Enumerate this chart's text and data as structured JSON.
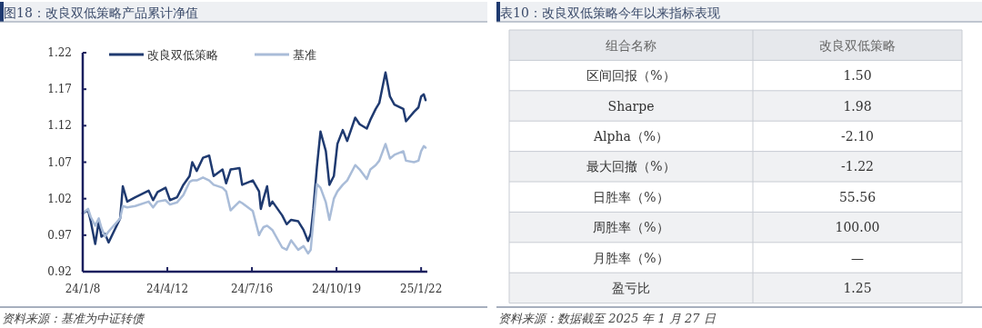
{
  "chart_data": [
    {
      "type": "line",
      "title": "图18：改良双低策略产品累计净值",
      "annotations": [
        "资料来源：基准为中证转债"
      ],
      "x": [
        "2024-01-08",
        "2024-01-14",
        "2024-01-17",
        "2024-01-22",
        "2024-01-26",
        "2024-01-29",
        "2024-02-02",
        "2024-02-06",
        "2024-02-19",
        "2024-02-22",
        "2024-02-27",
        "2024-03-07",
        "2024-03-22",
        "2024-03-27",
        "2024-04-01",
        "2024-04-10",
        "2024-04-15",
        "2024-04-23",
        "2024-04-30",
        "2024-05-07",
        "2024-05-10",
        "2024-05-15",
        "2024-05-22",
        "2024-05-29",
        "2024-06-03",
        "2024-06-13",
        "2024-06-17",
        "2024-06-22",
        "2024-07-02",
        "2024-07-05",
        "2024-07-17",
        "2024-07-24",
        "2024-07-26",
        "2024-07-29",
        "2024-08-02",
        "2024-08-05",
        "2024-08-08",
        "2024-08-19",
        "2024-08-24",
        "2024-08-29",
        "2024-09-06",
        "2024-09-12",
        "2024-09-17",
        "2024-09-20",
        "2024-09-23",
        "2024-09-27",
        "2024-10-01",
        "2024-10-07",
        "2024-10-11",
        "2024-10-16",
        "2024-10-20",
        "2024-10-26",
        "2024-10-31",
        "2024-11-09",
        "2024-11-14",
        "2024-11-22",
        "2024-11-26",
        "2024-12-02",
        "2024-12-06",
        "2024-12-13",
        "2024-12-18",
        "2024-12-23",
        "2025-01-02",
        "2025-01-05",
        "2025-01-14",
        "2025-01-19",
        "2025-01-22",
        "2025-01-25",
        "2025-01-27"
      ],
      "series": [
        {
          "name": "改良双低策略",
          "color": "#1f3a70",
          "values": [
            1.0,
            1.004,
            0.989,
            0.958,
            0.989,
            0.968,
            0.972,
            0.96,
            0.993,
            1.037,
            1.016,
            1.022,
            1.031,
            1.018,
            1.029,
            1.035,
            1.018,
            1.022,
            1.039,
            1.051,
            1.07,
            1.058,
            1.076,
            1.079,
            1.051,
            1.06,
            1.041,
            1.06,
            1.062,
            1.039,
            1.045,
            1.03,
            1.006,
            1.02,
            1.037,
            1.01,
            1.016,
            0.997,
            0.985,
            0.991,
            0.989,
            0.977,
            0.962,
            0.972,
            1.006,
            1.064,
            1.112,
            1.085,
            1.039,
            1.051,
            1.095,
            1.114,
            1.099,
            1.131,
            1.122,
            1.116,
            1.128,
            1.143,
            1.151,
            1.193,
            1.16,
            1.149,
            1.143,
            1.126,
            1.139,
            1.145,
            1.16,
            1.163,
            1.155
          ]
        },
        {
          "name": "基准",
          "color": "#a9bcd8",
          "values": [
            1.0,
            1.006,
            0.995,
            0.983,
            0.993,
            0.98,
            0.968,
            0.975,
            0.993,
            1.01,
            1.008,
            1.01,
            1.016,
            1.008,
            1.016,
            1.018,
            1.012,
            1.015,
            1.025,
            1.043,
            1.045,
            1.045,
            1.049,
            1.045,
            1.039,
            1.035,
            1.03,
            1.004,
            1.016,
            1.014,
            1.003,
            0.97,
            0.975,
            0.981,
            0.983,
            0.98,
            0.977,
            0.953,
            0.95,
            0.963,
            0.95,
            0.955,
            0.945,
            0.95,
            0.99,
            1.04,
            1.035,
            1.015,
            0.991,
            1.02,
            1.03,
            1.039,
            1.045,
            1.066,
            1.06,
            1.047,
            1.06,
            1.066,
            1.072,
            1.095,
            1.075,
            1.08,
            1.085,
            1.072,
            1.07,
            1.072,
            1.085,
            1.092,
            1.09
          ]
        }
      ],
      "xlim": [
        "2024-01-08",
        "2025-01-29"
      ],
      "xticks": [
        {
          "value": "2024-01-08",
          "label": "24/1/8"
        },
        {
          "value": "2024-04-12",
          "label": "24/4/12"
        },
        {
          "value": "2024-07-16",
          "label": "24/7/16"
        },
        {
          "value": "2024-10-19",
          "label": "24/10/19"
        },
        {
          "value": "2025-01-22",
          "label": "25/1/22"
        }
      ],
      "ylim": [
        0.92,
        1.22
      ],
      "yticks": [
        {
          "value": 0.92,
          "label": "0.92"
        },
        {
          "value": 0.97,
          "label": "0.97"
        },
        {
          "value": 1.02,
          "label": "1.02"
        },
        {
          "value": 1.07,
          "label": "1.07"
        },
        {
          "value": 1.12,
          "label": "1.12"
        },
        {
          "value": 1.17,
          "label": "1.17"
        },
        {
          "value": 1.22,
          "label": "1.22"
        }
      ],
      "legend": "top",
      "marker": "none",
      "line_style": "solid"
    },
    {
      "type": "other",
      "title": "表10：改良双低策略今年以来指标表现",
      "xlabel": "组合名称",
      "ylabel": "改良双低策略",
      "annotations": [
        "资料来源：数据截至 2025 年 1 月 27 日"
      ],
      "categories": [
        "区间回报（%）",
        "Sharpe",
        "Alpha（%）",
        "最大回撤（%）",
        "日胜率（%）",
        "周胜率（%）",
        "月胜率（%）",
        "盈亏比"
      ],
      "value_labels": [
        "1.50",
        "1.98",
        "-2.10",
        "-1.22",
        "55.56",
        "100.00",
        "—",
        "1.25"
      ]
    }
  ]
}
